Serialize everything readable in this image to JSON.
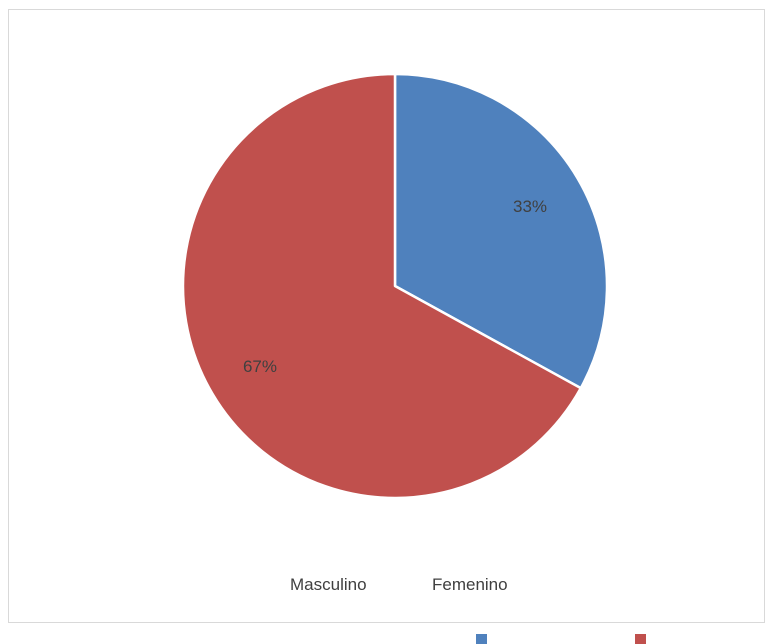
{
  "chart_data": {
    "type": "pie",
    "title": "",
    "slices": [
      {
        "label": "Masculino",
        "value": 33,
        "value_label": "33%",
        "color": "#4F81BD"
      },
      {
        "label": "Femenino",
        "value": 67,
        "value_label": "67%",
        "color": "#C0504D"
      }
    ],
    "legend_position": "bottom"
  }
}
